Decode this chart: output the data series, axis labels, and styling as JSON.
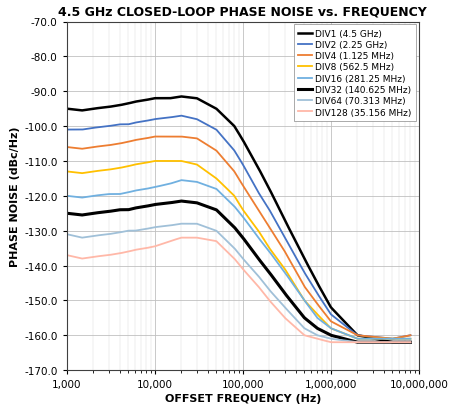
{
  "title": "4.5 GHz CLOSED-LOOP PHASE NOISE vs. FREQUENCY",
  "xlabel": "OFFSET FREQUENCY (Hz)",
  "ylabel": "PHASE NOISE (dBc/Hz)",
  "xlim": [
    1000,
    10000000
  ],
  "ylim": [
    -170,
    -70
  ],
  "yticks": [
    -70,
    -80,
    -90,
    -100,
    -110,
    -120,
    -130,
    -140,
    -150,
    -160,
    -170
  ],
  "series": [
    {
      "label": "DIV1 (4.5 GHz)",
      "color": "#000000",
      "linewidth": 1.8,
      "alpha": 1.0,
      "points_x": [
        1000,
        1500,
        2000,
        3000,
        4000,
        5000,
        6000,
        8000,
        10000,
        15000,
        20000,
        30000,
        50000,
        80000,
        100000,
        150000,
        200000,
        300000,
        500000,
        700000,
        1000000,
        2000000,
        5000000,
        8000000
      ],
      "points_y": [
        -95,
        -95.5,
        -95,
        -94.5,
        -94,
        -93.5,
        -93,
        -92.5,
        -92,
        -92,
        -91.5,
        -92,
        -95,
        -100,
        -104,
        -112,
        -118,
        -127,
        -138,
        -145,
        -152,
        -160,
        -162,
        -162
      ]
    },
    {
      "label": "DIV2 (2.25 GHz)",
      "color": "#4472C4",
      "linewidth": 1.3,
      "alpha": 1.0,
      "points_x": [
        1000,
        1500,
        2000,
        3000,
        4000,
        5000,
        6000,
        8000,
        10000,
        15000,
        20000,
        30000,
        50000,
        80000,
        100000,
        150000,
        200000,
        300000,
        500000,
        700000,
        1000000,
        2000000,
        5000000,
        8000000
      ],
      "points_y": [
        -101,
        -101,
        -100.5,
        -100,
        -99.5,
        -99.5,
        -99,
        -98.5,
        -98,
        -97.5,
        -97,
        -98,
        -101,
        -107,
        -111,
        -119,
        -124,
        -132,
        -142,
        -148,
        -154,
        -160,
        -161,
        -160
      ]
    },
    {
      "label": "DIV4 (1.125 MHz)",
      "color": "#ED7D31",
      "linewidth": 1.3,
      "alpha": 1.0,
      "points_x": [
        1000,
        1500,
        2000,
        3000,
        4000,
        5000,
        6000,
        8000,
        10000,
        15000,
        20000,
        30000,
        50000,
        80000,
        100000,
        150000,
        200000,
        300000,
        500000,
        700000,
        1000000,
        2000000,
        5000000,
        8000000
      ],
      "points_y": [
        -106,
        -106.5,
        -106,
        -105.5,
        -105,
        -104.5,
        -104,
        -103.5,
        -103,
        -103,
        -103,
        -103.5,
        -107,
        -113,
        -117,
        -124,
        -129,
        -136,
        -146,
        -151,
        -156,
        -160,
        -161,
        -160
      ]
    },
    {
      "label": "DIV8 (562.5 MHz)",
      "color": "#FFC000",
      "linewidth": 1.3,
      "alpha": 1.0,
      "points_x": [
        1000,
        1500,
        2000,
        3000,
        4000,
        5000,
        6000,
        8000,
        10000,
        15000,
        20000,
        30000,
        50000,
        80000,
        100000,
        150000,
        200000,
        300000,
        500000,
        700000,
        1000000,
        2000000,
        5000000,
        8000000
      ],
      "points_y": [
        -113,
        -113.5,
        -113,
        -112.5,
        -112,
        -111.5,
        -111,
        -110.5,
        -110,
        -110,
        -110,
        -111,
        -115,
        -120,
        -124,
        -130,
        -135,
        -141,
        -150,
        -154,
        -158,
        -161,
        -161,
        -161
      ]
    },
    {
      "label": "DIV16 (281.25 MHz)",
      "color": "#70B0E0",
      "linewidth": 1.3,
      "alpha": 1.0,
      "points_x": [
        1000,
        1500,
        2000,
        3000,
        4000,
        5000,
        6000,
        8000,
        10000,
        15000,
        20000,
        30000,
        50000,
        80000,
        100000,
        150000,
        200000,
        300000,
        500000,
        700000,
        1000000,
        2000000,
        5000000,
        8000000
      ],
      "points_y": [
        -120,
        -120.5,
        -120,
        -119.5,
        -119.5,
        -119,
        -118.5,
        -118,
        -117.5,
        -116.5,
        -115.5,
        -116,
        -118,
        -123,
        -126,
        -132,
        -136,
        -142,
        -150,
        -155,
        -158,
        -161,
        -161,
        -161
      ]
    },
    {
      "label": "DIV32 (140.625 MHz)",
      "color": "#000000",
      "linewidth": 2.2,
      "alpha": 1.0,
      "points_x": [
        1000,
        1500,
        2000,
        3000,
        4000,
        5000,
        6000,
        8000,
        10000,
        15000,
        20000,
        30000,
        50000,
        80000,
        100000,
        150000,
        200000,
        300000,
        500000,
        700000,
        1000000,
        2000000,
        5000000,
        8000000
      ],
      "points_y": [
        -125,
        -125.5,
        -125,
        -124.5,
        -124,
        -124,
        -123.5,
        -123,
        -122.5,
        -122,
        -121.5,
        -122,
        -124,
        -129,
        -132,
        -138,
        -142,
        -148,
        -155,
        -158,
        -160,
        -162,
        -162,
        -162
      ]
    },
    {
      "label": "DIV64 (70.313 MHz)",
      "color": "#A0C0D8",
      "linewidth": 1.3,
      "alpha": 1.0,
      "points_x": [
        1000,
        1500,
        2000,
        3000,
        4000,
        5000,
        6000,
        8000,
        10000,
        15000,
        20000,
        30000,
        50000,
        80000,
        100000,
        150000,
        200000,
        300000,
        500000,
        700000,
        1000000,
        2000000,
        5000000,
        8000000
      ],
      "points_y": [
        -131,
        -132,
        -131.5,
        -131,
        -130.5,
        -130,
        -130,
        -129.5,
        -129,
        -128.5,
        -128,
        -128,
        -130,
        -135,
        -138,
        -143,
        -147,
        -152,
        -158,
        -160,
        -161,
        -162,
        -162,
        -162
      ]
    },
    {
      "label": "DIV128 (35.156 MHz)",
      "color": "#FFB8A8",
      "linewidth": 1.3,
      "alpha": 1.0,
      "points_x": [
        1000,
        1500,
        2000,
        3000,
        4000,
        5000,
        6000,
        8000,
        10000,
        15000,
        20000,
        30000,
        50000,
        80000,
        100000,
        150000,
        200000,
        300000,
        500000,
        700000,
        1000000,
        2000000,
        5000000,
        8000000
      ],
      "points_y": [
        -137,
        -138,
        -137.5,
        -137,
        -136.5,
        -136,
        -135.5,
        -135,
        -134.5,
        -133,
        -132,
        -132,
        -133,
        -138,
        -141,
        -146,
        -150,
        -155,
        -160,
        -161,
        -162,
        -162,
        -162,
        -162
      ]
    }
  ],
  "title_fontsize": 9,
  "axis_label_fontsize": 8,
  "tick_fontsize": 7.5,
  "legend_fontsize": 6.5,
  "background_color": "#FFFFFF",
  "grid_major_color": "#C0C0C0",
  "grid_minor_color": "#D8D8D8"
}
